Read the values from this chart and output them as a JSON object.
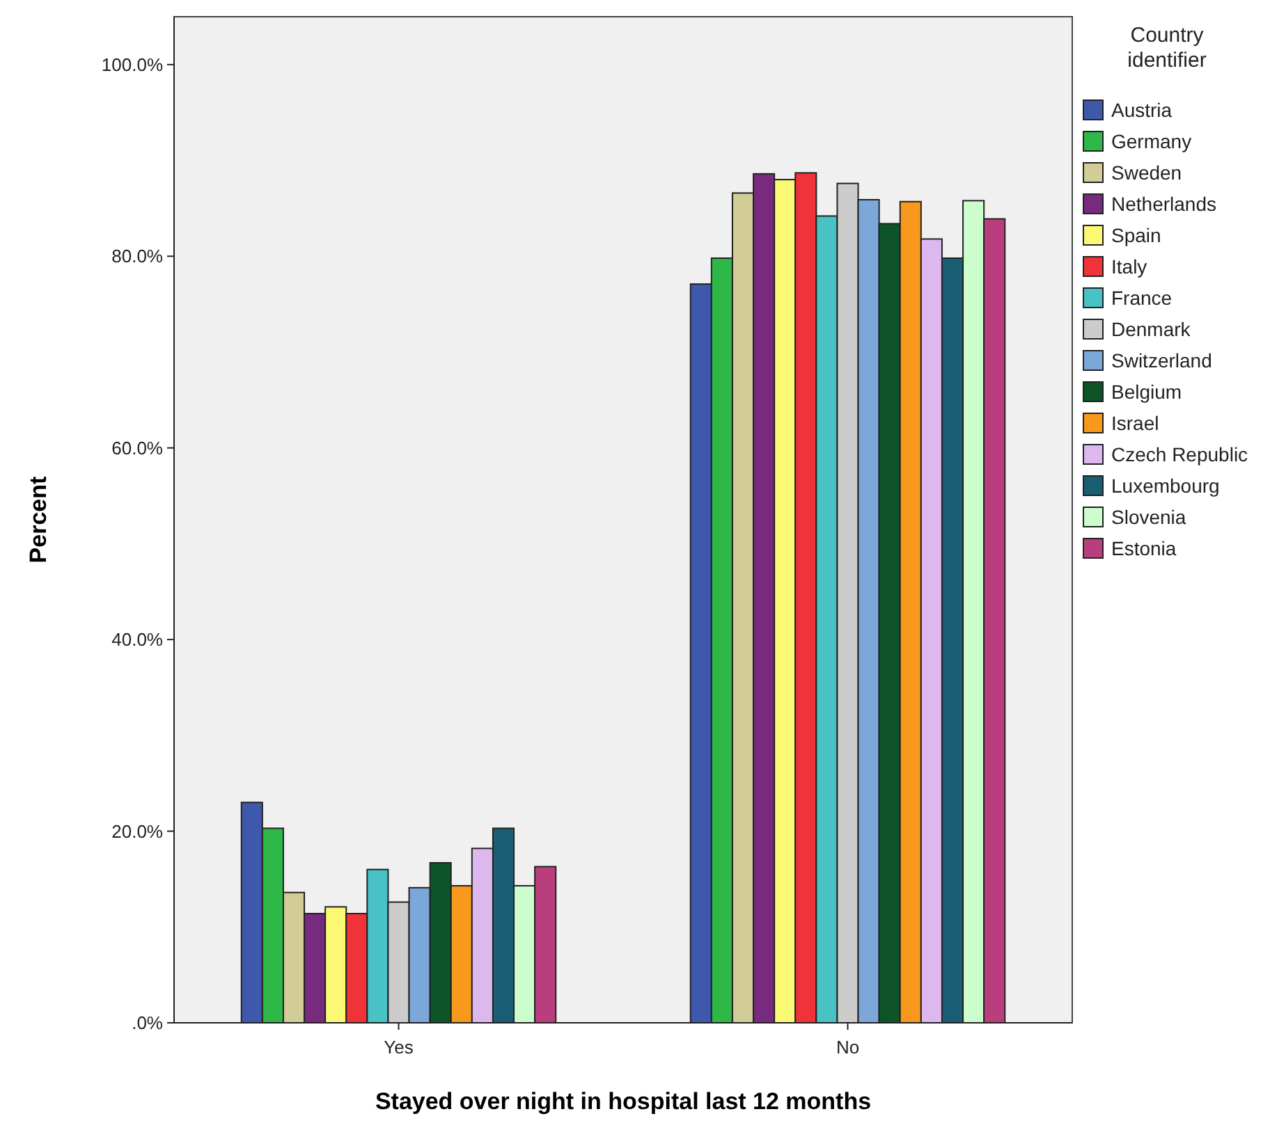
{
  "chart_data": {
    "type": "bar",
    "xlabel": "Stayed over night in hospital last 12 months",
    "ylabel": "Percent",
    "legend_title": "Country identifier",
    "legend": "right",
    "grid": false,
    "categories": [
      "Yes",
      "No"
    ],
    "ylim": [
      0,
      105
    ],
    "yticks": [
      {
        "value": 0,
        "label": ".0%"
      },
      {
        "value": 20,
        "label": "20.0%"
      },
      {
        "value": 40,
        "label": "40.0%"
      },
      {
        "value": 60,
        "label": "60.0%"
      },
      {
        "value": 80,
        "label": "80.0%"
      },
      {
        "value": 100,
        "label": "100.0%"
      }
    ],
    "series": [
      {
        "name": "Austria",
        "color": "#3e58ac",
        "values": [
          23.0,
          77.1
        ]
      },
      {
        "name": "Germany",
        "color": "#2eb848",
        "values": [
          20.3,
          79.8
        ]
      },
      {
        "name": "Sweden",
        "color": "#d2cc96",
        "values": [
          13.6,
          86.6
        ]
      },
      {
        "name": "Netherlands",
        "color": "#782a7e",
        "values": [
          11.4,
          88.6
        ]
      },
      {
        "name": "Spain",
        "color": "#fbf873",
        "values": [
          12.1,
          88.0
        ]
      },
      {
        "name": "Italy",
        "color": "#ef3338",
        "values": [
          11.4,
          88.7
        ]
      },
      {
        "name": "France",
        "color": "#48c2c5",
        "values": [
          16.0,
          84.2
        ]
      },
      {
        "name": "Denmark",
        "color": "#cccccc",
        "values": [
          12.6,
          87.6
        ]
      },
      {
        "name": "Switzerland",
        "color": "#7ba8d8",
        "values": [
          14.1,
          85.9
        ]
      },
      {
        "name": "Belgium",
        "color": "#0e5428",
        "values": [
          16.7,
          83.4
        ]
      },
      {
        "name": "Israel",
        "color": "#f8981d",
        "values": [
          14.3,
          85.7
        ]
      },
      {
        "name": "Czech Republic",
        "color": "#ddb8ee",
        "values": [
          18.2,
          81.8
        ]
      },
      {
        "name": "Luxembourg",
        "color": "#195e73",
        "values": [
          20.3,
          79.8
        ]
      },
      {
        "name": "Slovenia",
        "color": "#ccfdcc",
        "values": [
          14.3,
          85.8
        ]
      },
      {
        "name": "Estonia",
        "color": "#ba3e7e",
        "values": [
          16.3,
          83.9
        ]
      }
    ]
  }
}
